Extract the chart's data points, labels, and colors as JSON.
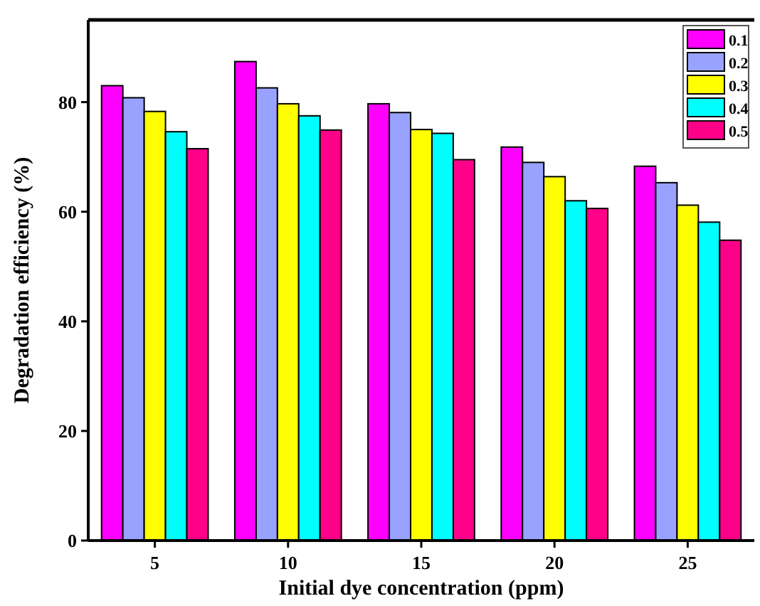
{
  "chart_data": {
    "type": "bar",
    "xlabel": "Initial dye concentration (ppm)",
    "ylabel": "Degradation efficiency (%)",
    "categories": [
      "5",
      "10",
      "15",
      "20",
      "25"
    ],
    "series": [
      {
        "name": "0.1",
        "color": "#ff00ff",
        "values": [
          83.0,
          87.4,
          79.7,
          71.8,
          68.3
        ]
      },
      {
        "name": "0.2",
        "color": "#99a3ff",
        "values": [
          80.8,
          82.6,
          78.1,
          69.0,
          65.3
        ]
      },
      {
        "name": "0.3",
        "color": "#ffff00",
        "values": [
          78.3,
          79.7,
          75.0,
          66.4,
          61.2
        ]
      },
      {
        "name": "0.4",
        "color": "#00ffff",
        "values": [
          74.6,
          77.5,
          74.3,
          62.0,
          58.1
        ]
      },
      {
        "name": "0.5",
        "color": "#ff0088",
        "values": [
          71.5,
          74.9,
          69.5,
          60.6,
          54.8
        ]
      }
    ],
    "ylim": [
      0,
      95
    ],
    "yticks": [
      0,
      20,
      40,
      60,
      80
    ],
    "legend": "top right",
    "grid": false
  }
}
